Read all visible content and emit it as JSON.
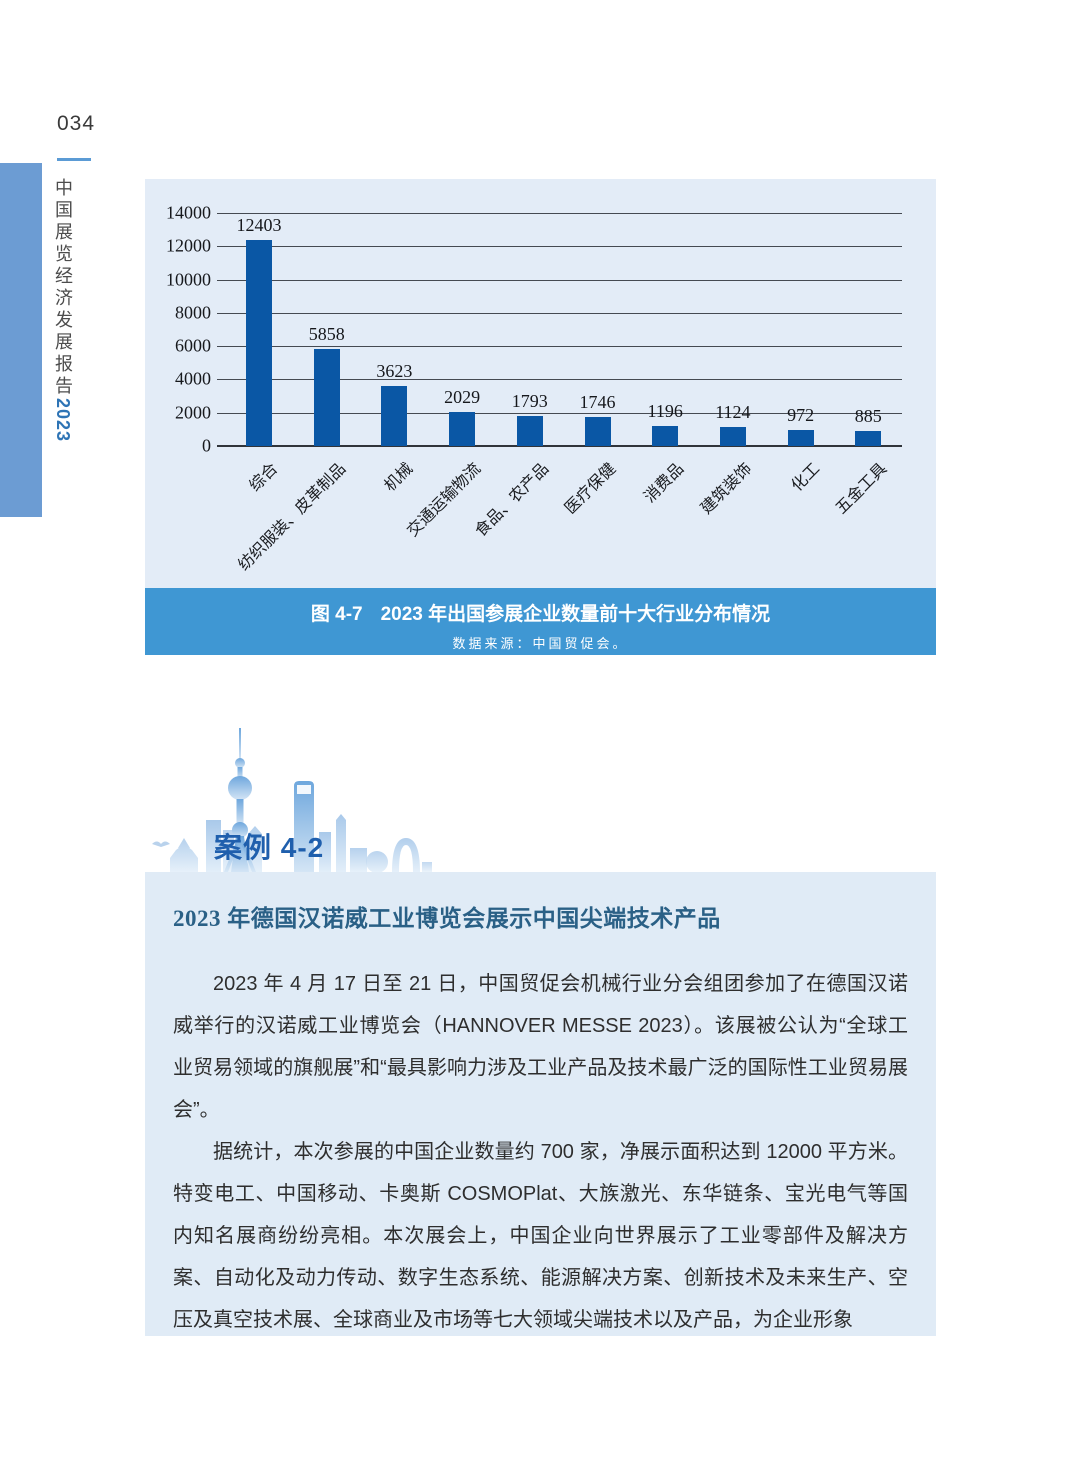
{
  "page": {
    "number": "034",
    "report_title": "中国展览经济发展报告",
    "report_year": "2023"
  },
  "figure": {
    "label": "图 4-7",
    "title": "2023 年出国参展企业数量前十大行业分布情况",
    "source": "数据来源：中国贸促会。"
  },
  "chart_data": {
    "type": "bar",
    "title": "图 4-7 2023 年出国参展企业数量前十大行业分布情况",
    "categories": [
      "综合",
      "纺织服装、皮革制品",
      "机械",
      "交通运输物流",
      "食品、农产品",
      "医疗保健",
      "消费品",
      "建筑装饰",
      "化工",
      "五金工具"
    ],
    "values": [
      12403,
      5858,
      3623,
      2029,
      1793,
      1746,
      1196,
      1124,
      972,
      885
    ],
    "xlabel": "",
    "ylabel": "",
    "ylim": [
      0,
      14000
    ],
    "yticks": [
      0,
      2000,
      4000,
      6000,
      8000,
      10000,
      12000,
      14000
    ],
    "grid": true,
    "legend": false,
    "value_labels": true,
    "bar_color": "#0a57a5",
    "plot_bg": "#e3ecf7"
  },
  "case": {
    "badge_label": "案例 4-2",
    "title": "2023 年德国汉诺威工业博览会展示中国尖端技术产品",
    "paragraphs": [
      "2023 年 4 月 17 日至 21 日，中国贸促会机械行业分会组团参加了在德国汉诺威举行的汉诺威工业博览会（HANNOVER MESSE 2023）。该展被公认为“全球工业贸易领域的旗舰展”和“最具影响力涉及工业产品及技术最广泛的国际性工业贸易展会”。",
      "据统计，本次参展的中国企业数量约 700 家，净展示面积达到 12000 平方米。特变电工、中国移动、卡奥斯 COSMOPlat、大族激光、东华链条、宝光电气等国内知名展商纷纷亮相。本次展会上，中国企业向世界展示了工业零部件及解决方案、自动化及动力传动、数字生态系统、能源解决方案、创新技术及未来生产、空压及真空技术展、全球商业及市场等七大领域尖端技术以及产品，为企业形象"
    ]
  },
  "colors": {
    "accent_band": "#6c9cd3",
    "chart_background": "#e3ecf7",
    "caption_bar": "#3f97d3",
    "bar": "#0a57a5",
    "case_box_background": "#e0ebf6",
    "case_title_text": "#2a6086",
    "badge_text": "#1f5fad",
    "sidebar_year": "#2e74b5"
  }
}
